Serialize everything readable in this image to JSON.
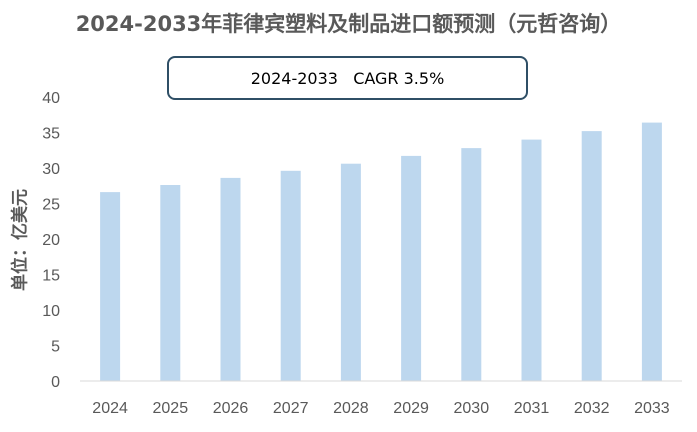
{
  "chart_data": {
    "type": "bar",
    "title": "2024-2033年菲律宾塑料及制品进口额预测（元哲咨询）",
    "annotation": "2024-2033   CAGR 3.5%",
    "ylabel": "单位：亿美元",
    "xlabel": "",
    "categories": [
      "2024",
      "2025",
      "2026",
      "2027",
      "2028",
      "2029",
      "2030",
      "2031",
      "2032",
      "2033"
    ],
    "values": [
      26.6,
      27.6,
      28.6,
      29.6,
      30.6,
      31.7,
      32.8,
      34.0,
      35.2,
      36.4
    ],
    "yticks": [
      0,
      5,
      10,
      15,
      20,
      25,
      30,
      35,
      40
    ],
    "ylim": [
      0,
      40
    ],
    "grid": false,
    "bar_color": "#bdd7ee"
  }
}
